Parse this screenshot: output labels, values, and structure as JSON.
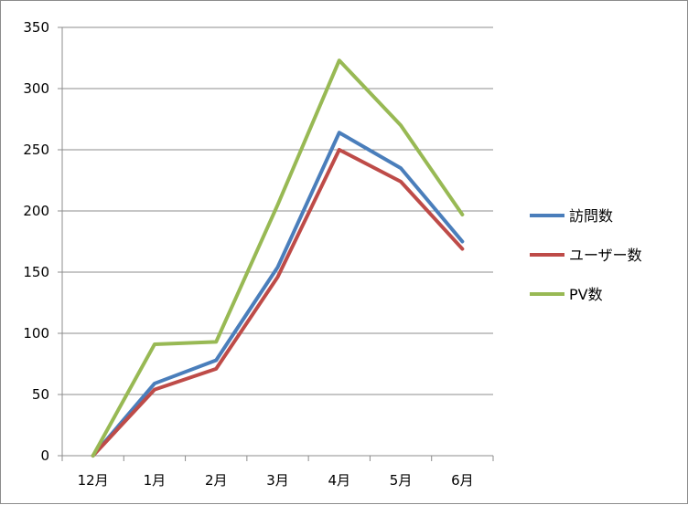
{
  "chart_data": {
    "type": "line",
    "categories": [
      "12月",
      "1月",
      "2月",
      "3月",
      "4月",
      "5月",
      "6月"
    ],
    "series": [
      {
        "name": "訪問数",
        "color": "#4a7ebb",
        "values": [
          0,
          59,
          78,
          154,
          264,
          235,
          175
        ]
      },
      {
        "name": "ユーザー数",
        "color": "#be4b48",
        "values": [
          0,
          54,
          71,
          146,
          250,
          224,
          169
        ]
      },
      {
        "name": "PV数",
        "color": "#98b954",
        "values": [
          0,
          91,
          93,
          205,
          323,
          270,
          197
        ]
      }
    ],
    "ylim": [
      0,
      350
    ],
    "yticks": [
      0,
      50,
      100,
      150,
      200,
      250,
      300,
      350
    ],
    "grid": true,
    "legend": "right"
  }
}
